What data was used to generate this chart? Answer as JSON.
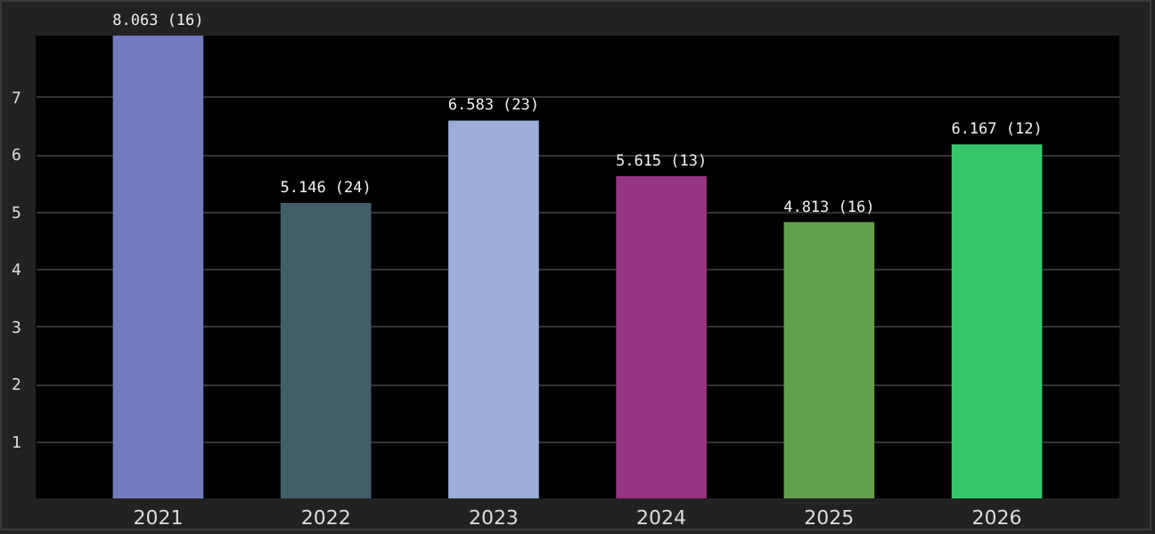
{
  "chart_data": {
    "type": "bar",
    "categories": [
      "2021",
      "2022",
      "2023",
      "2024",
      "2025",
      "2026"
    ],
    "values": [
      8.063,
      5.146,
      6.583,
      5.615,
      4.813,
      6.167
    ],
    "colors": [
      "#737bbf",
      "#415e6a",
      "#9aaed9",
      "#953583",
      "#62a04b",
      "#37c66a"
    ],
    "value_labels": [
      "8.063 (16)",
      "5.146 (24)",
      "6.583 (23)",
      "5.615 (13)",
      "4.813 (16)",
      "6.167 (12)"
    ],
    "ylim": [
      0,
      8.063
    ],
    "yticks": [
      1,
      2,
      3,
      4,
      5,
      6,
      7
    ],
    "grid": "y"
  }
}
